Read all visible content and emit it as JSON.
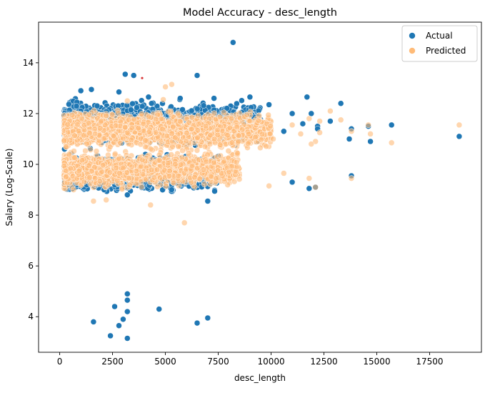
{
  "chart_data": {
    "type": "scatter",
    "title": "Model Accuracy - desc_length",
    "xlabel": "desc_length",
    "ylabel": "Salary (Log-Scale)",
    "xlim": [
      -1000,
      19950
    ],
    "ylim": [
      2.6,
      15.6
    ],
    "x_ticks": [
      0,
      2500,
      5000,
      7500,
      10000,
      12500,
      15000,
      17500
    ],
    "y_ticks": [
      4,
      6,
      8,
      10,
      12,
      14
    ],
    "grid": false,
    "legend_position": "top-right",
    "series": [
      {
        "name": "Actual",
        "color": "#1f77b4",
        "clusters": [
          {
            "x_range": [
              200,
              9500
            ],
            "y_range": [
              10.6,
              12.6
            ],
            "count": 1800
          },
          {
            "x_range": [
              200,
              7500
            ],
            "y_range": [
              8.8,
              10.5
            ],
            "count": 1200
          }
        ],
        "points": [
          [
            8200,
            14.8
          ],
          [
            3100,
            13.55
          ],
          [
            6500,
            13.5
          ],
          [
            3500,
            13.5
          ],
          [
            4200,
            12.65
          ],
          [
            1000,
            12.9
          ],
          [
            1500,
            12.95
          ],
          [
            2800,
            12.85
          ],
          [
            5700,
            12.6
          ],
          [
            7300,
            12.6
          ],
          [
            9000,
            12.65
          ],
          [
            11700,
            12.65
          ],
          [
            13300,
            12.4
          ],
          [
            9900,
            12.35
          ],
          [
            11000,
            12.0
          ],
          [
            11900,
            12.0
          ],
          [
            10600,
            11.3
          ],
          [
            11500,
            11.6
          ],
          [
            12200,
            11.5
          ],
          [
            12800,
            11.7
          ],
          [
            13800,
            11.4
          ],
          [
            14600,
            11.5
          ],
          [
            15700,
            11.55
          ],
          [
            14700,
            10.9
          ],
          [
            13700,
            11.0
          ],
          [
            12200,
            11.4
          ],
          [
            18900,
            11.1
          ],
          [
            11000,
            9.3
          ],
          [
            11800,
            9.05
          ],
          [
            12100,
            9.1
          ],
          [
            13800,
            9.55
          ],
          [
            7000,
            8.55
          ],
          [
            2100,
            9.0
          ],
          [
            3200,
            8.8
          ],
          [
            400,
            9.2
          ],
          [
            1600,
            3.8
          ],
          [
            2600,
            4.4
          ],
          [
            2400,
            3.25
          ],
          [
            2800,
            3.65
          ],
          [
            3000,
            3.9
          ],
          [
            3200,
            3.15
          ],
          [
            3200,
            4.2
          ],
          [
            3200,
            4.65
          ],
          [
            3200,
            4.9
          ],
          [
            4700,
            4.3
          ],
          [
            6500,
            3.75
          ],
          [
            7000,
            3.95
          ]
        ]
      },
      {
        "name": "Predicted",
        "color": "#ffbb78",
        "clusters": [
          {
            "x_range": [
              200,
              10000
            ],
            "y_range": [
              10.5,
              12.2
            ],
            "count": 2200
          },
          {
            "x_range": [
              200,
              8500
            ],
            "y_range": [
              9.0,
              10.6
            ],
            "count": 1600
          }
        ],
        "points": [
          [
            5300,
            13.15
          ],
          [
            5000,
            13.05
          ],
          [
            3200,
            12.5
          ],
          [
            4900,
            12.55
          ],
          [
            12800,
            12.1
          ],
          [
            13300,
            11.75
          ],
          [
            12300,
            11.7
          ],
          [
            11800,
            11.8
          ],
          [
            11000,
            11.55
          ],
          [
            11400,
            11.2
          ],
          [
            12300,
            11.25
          ],
          [
            13800,
            11.3
          ],
          [
            14600,
            11.55
          ],
          [
            14700,
            11.2
          ],
          [
            15700,
            10.85
          ],
          [
            18900,
            11.55
          ],
          [
            12100,
            10.9
          ],
          [
            11900,
            10.8
          ],
          [
            10100,
            11.0
          ],
          [
            10600,
            9.65
          ],
          [
            11800,
            9.45
          ],
          [
            12100,
            9.1
          ],
          [
            13800,
            9.45
          ],
          [
            9900,
            9.15
          ],
          [
            1600,
            8.55
          ],
          [
            4300,
            8.4
          ],
          [
            5900,
            7.7
          ],
          [
            2200,
            8.6
          ],
          [
            300,
            9.5
          ]
        ]
      },
      {
        "name": "",
        "color": "#d62728",
        "points": [
          [
            3900,
            13.4
          ]
        ]
      }
    ]
  }
}
